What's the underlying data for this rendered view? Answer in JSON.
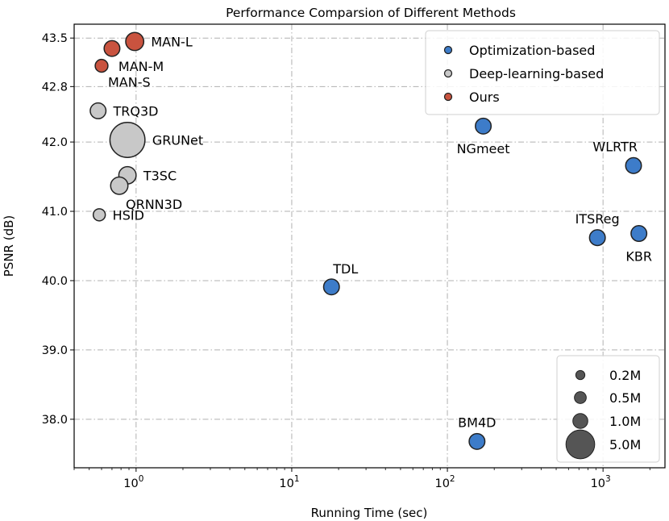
{
  "chart_data": {
    "type": "scatter",
    "title": "Performance Comparsion of Different Methods",
    "xlabel": "Running Time (sec)",
    "ylabel": "PSNR (dB)",
    "xscale": "log",
    "xlim": [
      0.4,
      2500
    ],
    "ylim": [
      37.3,
      43.7
    ],
    "xticks": [
      {
        "value": 1,
        "base": "10",
        "exp": "0"
      },
      {
        "value": 10,
        "base": "10",
        "exp": "1"
      },
      {
        "value": 100,
        "base": "10",
        "exp": "2"
      },
      {
        "value": 1000,
        "base": "10",
        "exp": "3"
      }
    ],
    "yticks": [
      {
        "value": 38.0,
        "label": "38.0"
      },
      {
        "value": 39.0,
        "label": "39.0"
      },
      {
        "value": 40.0,
        "label": "40.0"
      },
      {
        "value": 41.0,
        "label": "41.0"
      },
      {
        "value": 42.0,
        "label": "42.0"
      },
      {
        "value": 42.8,
        "label": "42.8"
      },
      {
        "value": 43.5,
        "label": "43.5"
      }
    ],
    "grid": true,
    "categories": [
      {
        "name": "Optimization-based",
        "color": "#3d7cc9"
      },
      {
        "name": "Deep-learning-based",
        "color": "#c8c8c8"
      },
      {
        "name": "Ours",
        "color": "#c9533f"
      }
    ],
    "points": [
      {
        "label": "MAN-L",
        "category": 2,
        "x": 0.98,
        "y": 43.45,
        "params_m": 0.9,
        "label_pos": "right"
      },
      {
        "label": "MAN-M",
        "category": 2,
        "x": 0.7,
        "y": 43.35,
        "params_m": 0.6,
        "label_pos": "below-right"
      },
      {
        "label": "MAN-S",
        "category": 2,
        "x": 0.6,
        "y": 43.1,
        "params_m": 0.3,
        "label_pos": "below-right"
      },
      {
        "label": "TRQ3D",
        "category": 1,
        "x": 0.57,
        "y": 42.45,
        "params_m": 0.6,
        "label_pos": "right"
      },
      {
        "label": "GRUNet",
        "category": 1,
        "x": 0.88,
        "y": 42.03,
        "params_m": 5.0,
        "label_pos": "right"
      },
      {
        "label": "T3SC",
        "category": 1,
        "x": 0.88,
        "y": 41.52,
        "params_m": 0.8,
        "label_pos": "right"
      },
      {
        "label": "QRNN3D",
        "category": 1,
        "x": 0.78,
        "y": 41.37,
        "params_m": 0.8,
        "label_pos": "below-right"
      },
      {
        "label": "HSID",
        "category": 1,
        "x": 0.58,
        "y": 40.95,
        "params_m": 0.25,
        "label_pos": "right"
      },
      {
        "label": "NGmeet",
        "category": 0,
        "x": 170,
        "y": 42.23,
        "params_m": 0.6,
        "label_pos": "below"
      },
      {
        "label": "WLRTR",
        "category": 0,
        "x": 1570,
        "y": 41.66,
        "params_m": 0.6,
        "label_pos": "above-left"
      },
      {
        "label": "ITSReg",
        "category": 0,
        "x": 920,
        "y": 40.62,
        "params_m": 0.6,
        "label_pos": "above"
      },
      {
        "label": "KBR",
        "category": 0,
        "x": 1700,
        "y": 40.68,
        "params_m": 0.6,
        "label_pos": "below"
      },
      {
        "label": "TDL",
        "category": 0,
        "x": 18,
        "y": 39.91,
        "params_m": 0.6,
        "label_pos": "above-right"
      },
      {
        "label": "BM4D",
        "category": 0,
        "x": 155,
        "y": 37.68,
        "params_m": 0.6,
        "label_pos": "above"
      }
    ],
    "legend": {
      "placement": "top-right"
    },
    "size_legend": {
      "placement": "bottom-right",
      "items": [
        {
          "label": "0.2M",
          "params_m": 0.2
        },
        {
          "label": "0.5M",
          "params_m": 0.5
        },
        {
          "label": "1.0M",
          "params_m": 1.0
        },
        {
          "label": "5.0M",
          "params_m": 5.0
        }
      ]
    }
  }
}
